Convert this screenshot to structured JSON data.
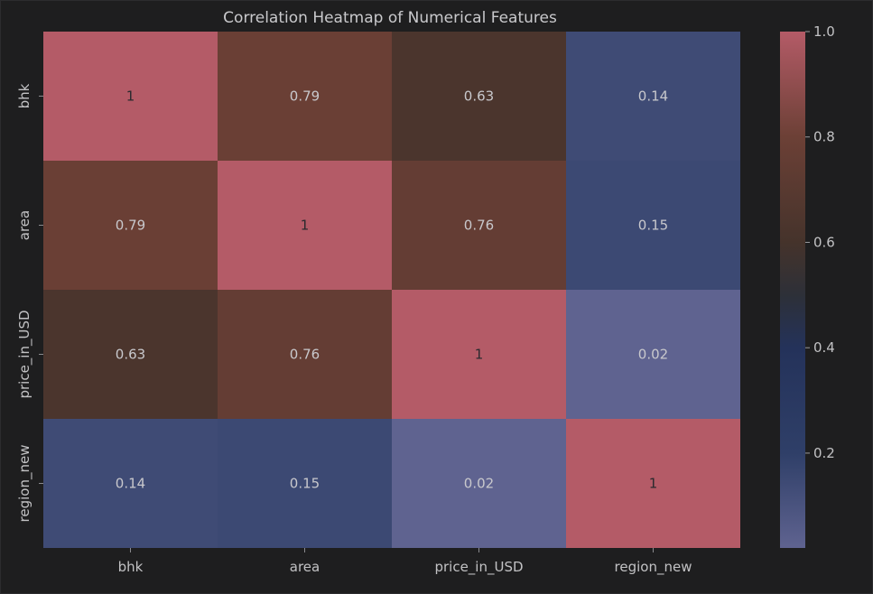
{
  "chart_data": {
    "type": "heatmap",
    "title": "Correlation Heatmap of Numerical Features",
    "xlabel": "",
    "ylabel": "",
    "x_categories": [
      "bhk",
      "area",
      "price_in_USD",
      "region_new"
    ],
    "y_categories": [
      "bhk",
      "area",
      "price_in_USD",
      "region_new"
    ],
    "values": [
      [
        1,
        0.79,
        0.63,
        0.14
      ],
      [
        0.79,
        1,
        0.76,
        0.15
      ],
      [
        0.63,
        0.76,
        1,
        0.02
      ],
      [
        0.14,
        0.15,
        0.02,
        1
      ]
    ],
    "annotations": [
      [
        "1",
        "0.79",
        "0.63",
        "0.14"
      ],
      [
        "0.79",
        "1",
        "0.76",
        "0.15"
      ],
      [
        "0.63",
        "0.76",
        "1",
        "0.02"
      ],
      [
        "0.14",
        "0.15",
        "0.02",
        "1"
      ]
    ],
    "colorbar": {
      "range": [
        0.02,
        1
      ],
      "ticks": [
        0.2,
        0.4,
        0.6,
        0.8,
        1.0
      ],
      "tick_labels": [
        "0.2",
        "0.4",
        "0.6",
        "0.8",
        "1.0"
      ],
      "colormap": [
        {
          "v": 0.02,
          "color": "#5f6390"
        },
        {
          "v": 0.2,
          "color": "#2f3f68"
        },
        {
          "v": 0.4,
          "color": "#24325a"
        },
        {
          "v": 0.5,
          "color": "#2d3038"
        },
        {
          "v": 0.6,
          "color": "#45332b"
        },
        {
          "v": 0.8,
          "color": "#6c4036"
        },
        {
          "v": 1.0,
          "color": "#b45b67"
        }
      ]
    },
    "colors": {
      "background": "#1e1e1f",
      "text": "#c2c2c4",
      "annotation_on_light": "#2a2a2e",
      "annotation_on_dark": "#c8c8cc"
    },
    "grid": false,
    "legend": "colorbar-right"
  }
}
